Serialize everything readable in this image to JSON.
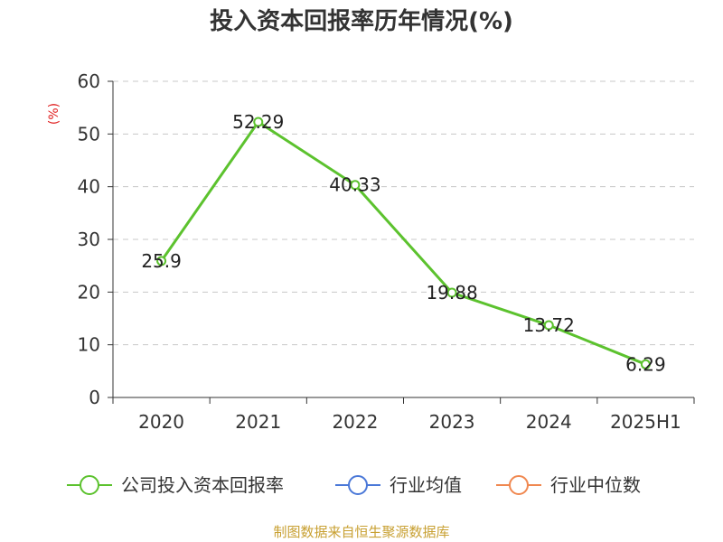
{
  "chart_data": {
    "type": "line",
    "title": "投入资本回报率历年情况(%)",
    "ylabel": "(%)",
    "categories": [
      "2020",
      "2021",
      "2022",
      "2023",
      "2024",
      "2025H1"
    ],
    "series": [
      {
        "name": "公司投入资本回报率",
        "values": [
          25.9,
          52.29,
          40.33,
          19.88,
          13.72,
          6.29
        ],
        "labels": [
          "25.9",
          "52.29",
          "40.33",
          "19.88",
          "13.72",
          "6.29"
        ],
        "color": "#5cc22e"
      }
    ],
    "yticks": [
      "0",
      "10",
      "20",
      "30",
      "40",
      "50",
      "60"
    ],
    "ylim": [
      0,
      60
    ],
    "grid": true,
    "legend": {
      "position": "bottom",
      "items": [
        {
          "name": "公司投入资本回报率",
          "color": "#5cc22e"
        },
        {
          "name": "行业均值",
          "color": "#4a78d8"
        },
        {
          "name": "行业中位数",
          "color": "#f08850"
        }
      ]
    }
  },
  "source": "制图数据来自恒生聚源数据库"
}
